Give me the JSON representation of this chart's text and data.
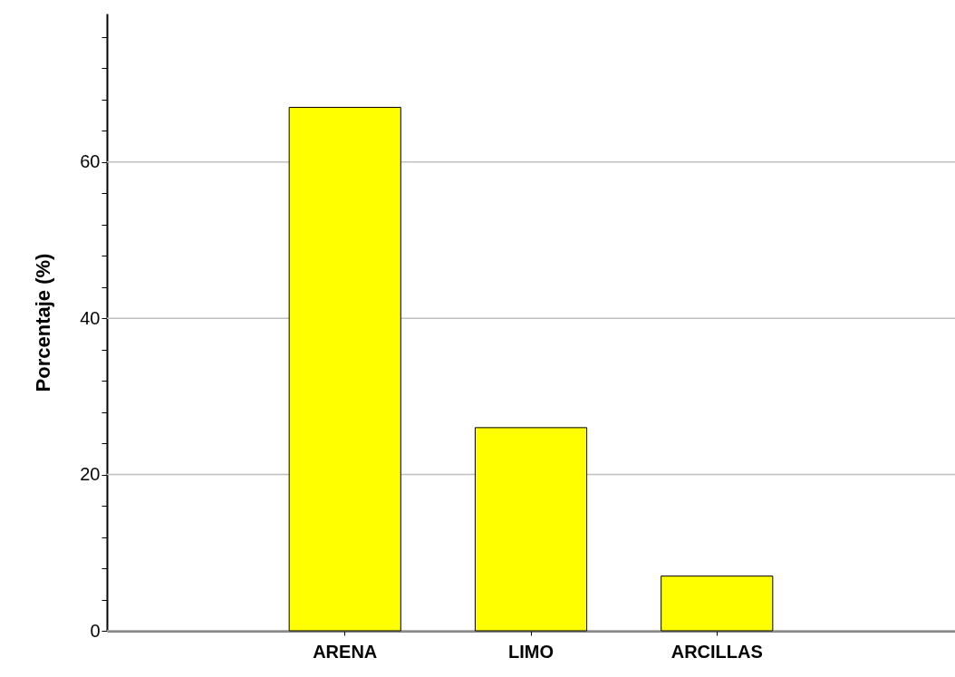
{
  "chart_data": {
    "type": "bar",
    "ylabel": "Porcentaje (%)",
    "categories": [
      "ARENA",
      "LIMO",
      "ARCILLAS"
    ],
    "values": [
      67,
      26,
      7
    ],
    "colors": [
      "#ffff00",
      "#ffff00",
      "#ffff00"
    ],
    "ylim": [
      0,
      79
    ],
    "yticks": [
      0,
      {
        "value": 4,
        "label": null
      },
      {
        "value": 8,
        "label": null
      },
      {
        "value": 12,
        "label": null
      },
      {
        "value": 16,
        "label": null
      },
      20,
      {
        "value": 24,
        "label": null
      },
      {
        "value": 28,
        "label": null
      },
      {
        "value": 32,
        "label": null
      },
      {
        "value": 36,
        "label": null
      },
      40,
      {
        "value": 44,
        "label": null
      },
      {
        "value": 48,
        "label": null
      },
      {
        "value": 52,
        "label": null
      },
      {
        "value": 56,
        "label": null
      },
      60,
      {
        "value": 64,
        "label": null
      },
      {
        "value": 68,
        "label": null
      },
      {
        "value": 72,
        "label": null
      },
      {
        "value": 76,
        "label": null
      }
    ],
    "grid": "y"
  }
}
